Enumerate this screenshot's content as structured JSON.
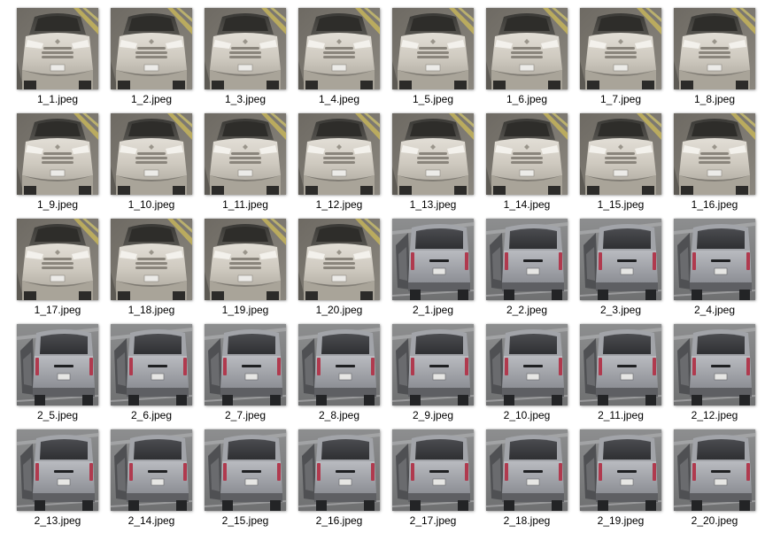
{
  "files": [
    {
      "name": "1_1.jpeg",
      "thumbnail": "front-view-white-car"
    },
    {
      "name": "1_2.jpeg",
      "thumbnail": "front-view-white-car"
    },
    {
      "name": "1_3.jpeg",
      "thumbnail": "front-view-white-car"
    },
    {
      "name": "1_4.jpeg",
      "thumbnail": "front-view-white-car"
    },
    {
      "name": "1_5.jpeg",
      "thumbnail": "front-view-white-car"
    },
    {
      "name": "1_6.jpeg",
      "thumbnail": "front-view-white-car"
    },
    {
      "name": "1_7.jpeg",
      "thumbnail": "front-view-white-car"
    },
    {
      "name": "1_8.jpeg",
      "thumbnail": "front-view-white-car"
    },
    {
      "name": "1_9.jpeg",
      "thumbnail": "front-view-white-car"
    },
    {
      "name": "1_10.jpeg",
      "thumbnail": "front-view-white-car"
    },
    {
      "name": "1_11.jpeg",
      "thumbnail": "front-view-white-car"
    },
    {
      "name": "1_12.jpeg",
      "thumbnail": "front-view-white-car"
    },
    {
      "name": "1_13.jpeg",
      "thumbnail": "front-view-white-car"
    },
    {
      "name": "1_14.jpeg",
      "thumbnail": "front-view-white-car"
    },
    {
      "name": "1_15.jpeg",
      "thumbnail": "front-view-white-car"
    },
    {
      "name": "1_16.jpeg",
      "thumbnail": "front-view-white-car"
    },
    {
      "name": "1_17.jpeg",
      "thumbnail": "front-view-white-car"
    },
    {
      "name": "1_18.jpeg",
      "thumbnail": "front-view-white-car"
    },
    {
      "name": "1_19.jpeg",
      "thumbnail": "front-view-white-car"
    },
    {
      "name": "1_20.jpeg",
      "thumbnail": "front-view-white-car"
    },
    {
      "name": "2_1.jpeg",
      "thumbnail": "rear-view-silver-car"
    },
    {
      "name": "2_2.jpeg",
      "thumbnail": "rear-view-silver-car"
    },
    {
      "name": "2_3.jpeg",
      "thumbnail": "rear-view-silver-car"
    },
    {
      "name": "2_4.jpeg",
      "thumbnail": "rear-view-silver-car"
    },
    {
      "name": "2_5.jpeg",
      "thumbnail": "rear-view-silver-car"
    },
    {
      "name": "2_6.jpeg",
      "thumbnail": "rear-view-silver-car"
    },
    {
      "name": "2_7.jpeg",
      "thumbnail": "rear-view-silver-car"
    },
    {
      "name": "2_8.jpeg",
      "thumbnail": "rear-view-silver-car"
    },
    {
      "name": "2_9.jpeg",
      "thumbnail": "rear-view-silver-car"
    },
    {
      "name": "2_10.jpeg",
      "thumbnail": "rear-view-silver-car"
    },
    {
      "name": "2_11.jpeg",
      "thumbnail": "rear-view-silver-car"
    },
    {
      "name": "2_12.jpeg",
      "thumbnail": "rear-view-silver-car"
    },
    {
      "name": "2_13.jpeg",
      "thumbnail": "rear-view-silver-car"
    },
    {
      "name": "2_14.jpeg",
      "thumbnail": "rear-view-silver-car"
    },
    {
      "name": "2_15.jpeg",
      "thumbnail": "rear-view-silver-car"
    },
    {
      "name": "2_16.jpeg",
      "thumbnail": "rear-view-silver-car"
    },
    {
      "name": "2_17.jpeg",
      "thumbnail": "rear-view-silver-car"
    },
    {
      "name": "2_18.jpeg",
      "thumbnail": "rear-view-silver-car"
    },
    {
      "name": "2_19.jpeg",
      "thumbnail": "rear-view-silver-car"
    },
    {
      "name": "2_20.jpeg",
      "thumbnail": "rear-view-silver-car"
    }
  ]
}
